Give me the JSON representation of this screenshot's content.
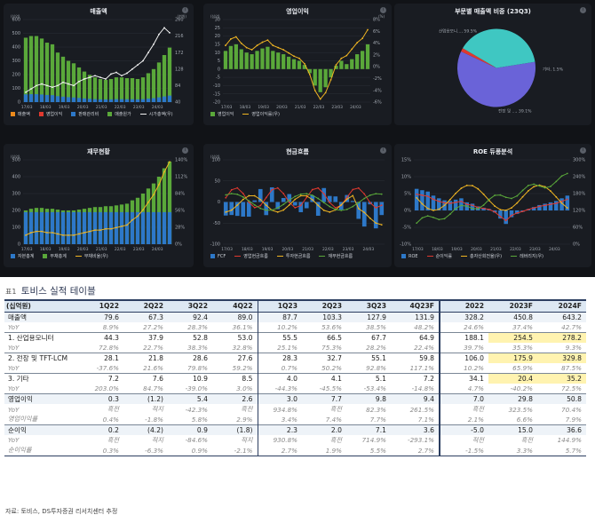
{
  "dashboard": {
    "panels": [
      {
        "id": "sales",
        "title": "매출액",
        "unit_left": "(십억)",
        "unit_right": "(천원)",
        "left_ticks": [
          "600",
          "500",
          "400",
          "300",
          "200",
          "100",
          "0"
        ],
        "right_ticks": [
          "260",
          "216",
          "172",
          "128",
          "84",
          "40"
        ],
        "x_ticks": [
          "17/03",
          "18/03",
          "19/03",
          "20/03",
          "21/03",
          "22/03",
          "23/03",
          "24/03"
        ],
        "legend": [
          {
            "label": "매출액",
            "color": "#ec8a1c",
            "kind": "box"
          },
          {
            "label": "영업이익",
            "color": "#e0392f",
            "kind": "box"
          },
          {
            "label": "판매관리비",
            "color": "#2d78c8",
            "kind": "box"
          },
          {
            "label": "매출원가",
            "color": "#5aa83a",
            "kind": "box"
          },
          {
            "label": "시가총액(우)",
            "color": "#f2f2f2",
            "kind": "line"
          }
        ]
      },
      {
        "id": "op",
        "title": "영업이익",
        "unit_left": "(십억)",
        "unit_right": "(%)",
        "left_ticks": [
          "30",
          "25",
          "20",
          "15",
          "10",
          "5",
          "0",
          "-5",
          "-10",
          "-15",
          "-20"
        ],
        "right_ticks": [
          "8%",
          "6%",
          "4%",
          "2%",
          "0%",
          "-2%",
          "-4%",
          "-6%"
        ],
        "x_ticks": [
          "17/03",
          "18/03",
          "19/03",
          "20/03",
          "21/03",
          "22/03",
          "23/03",
          "24/03"
        ],
        "legend": [
          {
            "label": "영업이익",
            "color": "#5aa83a",
            "kind": "box"
          },
          {
            "label": "영업이익률(우)",
            "color": "#f0b522",
            "kind": "line"
          }
        ]
      },
      {
        "id": "pie",
        "title": "부문별 매출액 비중 (23Q3)",
        "slices": [
          {
            "label": "산업용모니...,",
            "pct": "59.5%",
            "value": 59.5,
            "color": "#6a63d8"
          },
          {
            "label": "기타,",
            "pct": "1.5%",
            "value": 1.5,
            "color": "#e0392f"
          },
          {
            "label": "전장 및 ...,",
            "pct": "39.1%",
            "value": 39.1,
            "color": "#3fc7c2"
          }
        ]
      },
      {
        "id": "fin",
        "title": "재무현황",
        "unit_left": "(십억)",
        "left_ticks": [
          "500",
          "400",
          "300",
          "200",
          "100",
          "0"
        ],
        "right_ticks": [
          "140%",
          "112%",
          "84%",
          "56%",
          "28%",
          "0%"
        ],
        "x_ticks": [
          "17/03",
          "18/03",
          "19/03",
          "20/03",
          "21/03",
          "22/03",
          "23/03",
          "24/03"
        ],
        "legend": [
          {
            "label": "자본총계",
            "color": "#2d78c8",
            "kind": "box"
          },
          {
            "label": "부채총계",
            "color": "#5aa83a",
            "kind": "box"
          },
          {
            "label": "부채비율(우)",
            "color": "#f0b522",
            "kind": "line"
          }
        ]
      },
      {
        "id": "cf",
        "title": "현금흐름",
        "unit_left": "(십억)",
        "left_ticks": [
          "100",
          "50",
          "0",
          "-50",
          "-100"
        ],
        "x_ticks": [
          "17/03",
          "18/03",
          "19/03",
          "20/03",
          "21/03",
          "22/03",
          "23/03",
          "24/03"
        ],
        "legend": [
          {
            "label": "FCF",
            "color": "#2d78c8",
            "kind": "box"
          },
          {
            "label": "영업현금흐름",
            "color": "#e0392f",
            "kind": "line"
          },
          {
            "label": "투자현금흐름",
            "color": "#f0b522",
            "kind": "line"
          },
          {
            "label": "재무현금흐름",
            "color": "#5aa83a",
            "kind": "line"
          }
        ]
      },
      {
        "id": "roe",
        "title": "ROE 듀퐁분석",
        "left_ticks": [
          "15%",
          "10%",
          "5%",
          "0%",
          "-5%",
          "-10%"
        ],
        "right_ticks": [
          "300%",
          "240%",
          "180%",
          "120%",
          "60%",
          "0%"
        ],
        "x_ticks": [
          "17/03",
          "18/03",
          "19/03",
          "20/03",
          "21/03",
          "22/03",
          "23/03",
          "24/03"
        ],
        "legend": [
          {
            "label": "ROE",
            "color": "#2d78c8",
            "kind": "box"
          },
          {
            "label": "순이익률",
            "color": "#e0392f",
            "kind": "line"
          },
          {
            "label": "총자산회전율(우)",
            "color": "#f0b522",
            "kind": "line"
          },
          {
            "label": "레버리지(우)",
            "color": "#5aa83a",
            "kind": "line"
          }
        ]
      }
    ]
  },
  "table": {
    "prefix": "표1",
    "title": "토비스 실적 테이블",
    "headers": [
      "(십억원)",
      "1Q22",
      "2Q22",
      "3Q22",
      "4Q22",
      "1Q23",
      "2Q23",
      "3Q23",
      "4Q23F",
      "2022",
      "2023F",
      "2024F"
    ],
    "rows": [
      {
        "type": "sec",
        "cells": [
          "매출액",
          "79.6",
          "67.3",
          "92.4",
          "89.0",
          "87.7",
          "103.3",
          "127.9",
          "131.9",
          "328.2",
          "450.8",
          "643.2"
        ]
      },
      {
        "type": "sub",
        "cells": [
          "YoY",
          "8.9%",
          "27.2%",
          "28.3%",
          "36.1%",
          "10.2%",
          "53.6%",
          "38.5%",
          "48.2%",
          "24.6%",
          "37.4%",
          "42.7%"
        ]
      },
      {
        "type": "grp",
        "cells": [
          "1. 산업용모니터",
          "44.3",
          "37.9",
          "52.8",
          "53.0",
          "55.5",
          "66.5",
          "67.7",
          "64.9",
          "188.1",
          "254.5",
          "278.2"
        ],
        "hl": [
          10,
          11
        ]
      },
      {
        "type": "sub",
        "cells": [
          "YoY",
          "72.8%",
          "22.7%",
          "38.3%",
          "32.8%",
          "25.1%",
          "75.3%",
          "28.2%",
          "22.4%",
          "39.7%",
          "35.3%",
          "9.3%"
        ]
      },
      {
        "type": "grp",
        "cells": [
          "2. 전장 및 TFT-LCM",
          "28.1",
          "21.8",
          "28.6",
          "27.6",
          "28.3",
          "32.7",
          "55.1",
          "59.8",
          "106.0",
          "175.9",
          "329.8"
        ],
        "hl": [
          10,
          11
        ]
      },
      {
        "type": "sub",
        "cells": [
          "YoY",
          "-37.6%",
          "21.6%",
          "79.8%",
          "59.2%",
          "0.7%",
          "50.2%",
          "92.8%",
          "117.1%",
          "10.2%",
          "65.9%",
          "87.5%"
        ]
      },
      {
        "type": "grp",
        "cells": [
          "3. 기타",
          "7.2",
          "7.6",
          "10.9",
          "8.5",
          "4.0",
          "4.1",
          "5.1",
          "7.2",
          "34.1",
          "20.4",
          "35.2"
        ],
        "hl": [
          10,
          11
        ]
      },
      {
        "type": "sub",
        "cells": [
          "YoY",
          "203.0%",
          "84.7%",
          "-39.0%",
          "3.0%",
          "-44.3%",
          "-45.5%",
          "-53.4%",
          "-14.8%",
          "4.7%",
          "-40.2%",
          "72.5%"
        ]
      },
      {
        "type": "secgrp",
        "cells": [
          "영업이익",
          "0.3",
          "(1.2)",
          "5.4",
          "2.6",
          "3.0",
          "7.7",
          "9.8",
          "9.4",
          "7.0",
          "29.8",
          "50.8"
        ],
        "hl": [
          11
        ]
      },
      {
        "type": "sub",
        "cells": [
          "YoY",
          "흑전",
          "적지",
          "-42.3%",
          "흑전",
          "934.8%",
          "흑전",
          "82.3%",
          "261.5%",
          "흑전",
          "323.5%",
          "70.4%"
        ]
      },
      {
        "type": "sub",
        "cells": [
          "영업이익률",
          "0.4%",
          "-1.8%",
          "5.8%",
          "2.9%",
          "3.4%",
          "7.4%",
          "7.7%",
          "7.1%",
          "2.1%",
          "6.6%",
          "7.9%"
        ]
      },
      {
        "type": "secgrp",
        "cells": [
          "순이익",
          "0.2",
          "(4.2)",
          "0.9",
          "(1.8)",
          "2.3",
          "2.0",
          "7.1",
          "3.6",
          "-5.0",
          "15.0",
          "36.6"
        ],
        "hl": [
          11
        ]
      },
      {
        "type": "sub",
        "cells": [
          "YoY",
          "흑전",
          "적지",
          "-84.6%",
          "적지",
          "930.8%",
          "흑전",
          "714.9%",
          "-293.1%",
          "적전",
          "흑전",
          "144.9%"
        ]
      },
      {
        "type": "sublast",
        "cells": [
          "순이익률",
          "0.3%",
          "-6.3%",
          "0.9%",
          "-2.1%",
          "2.7%",
          "1.9%",
          "5.5%",
          "2.7%",
          "-1.5%",
          "3.3%",
          "5.7%"
        ]
      }
    ],
    "source": "자료: 토비스, DS투자증권 리서치센터 추정"
  }
}
